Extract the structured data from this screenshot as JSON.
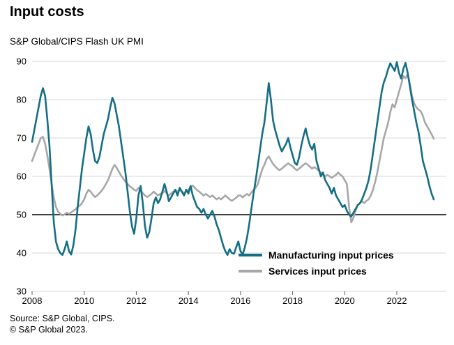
{
  "title": "Input costs",
  "subtitle": "S&P Global/CIPS Flash UK PMI",
  "source": {
    "line1": "Source: S&P Global, CIPS.",
    "line2": "© S&P Global 2023."
  },
  "colors": {
    "manufacturing": "#146e84",
    "services": "#a7a7a7",
    "gridline": "#d9d9d9",
    "baseline": "#000000",
    "tick": "#595959",
    "label": "#000000"
  },
  "chart_data": {
    "type": "line",
    "title": "Input costs",
    "subtitle": "S&P Global/CIPS Flash UK PMI",
    "xlabel": "",
    "ylabel": "",
    "x_start": 2008.0,
    "x_step_months": 1,
    "xlim": [
      2008,
      2023.9
    ],
    "ylim": [
      30,
      90
    ],
    "yticks": [
      30,
      40,
      50,
      60,
      70,
      80,
      90
    ],
    "xticks": [
      2008,
      2010,
      2012,
      2014,
      2016,
      2018,
      2020,
      2022
    ],
    "baseline": 50,
    "grid": "horizontal",
    "legend_position": "inside-bottom-right",
    "series": [
      {
        "name": "Manufacturing input prices",
        "color_key": "manufacturing",
        "values": [
          69,
          72,
          75,
          78,
          81,
          83,
          81,
          75,
          68,
          58,
          48,
          43,
          41,
          40,
          39.5,
          41,
          43,
          40.5,
          39.6,
          42,
          46,
          52,
          57,
          62,
          66,
          70,
          73,
          71,
          67,
          64,
          63.5,
          65,
          68,
          71,
          73,
          75,
          78,
          80.5,
          79,
          76,
          73,
          69,
          65,
          61,
          56,
          51,
          47,
          45,
          49,
          55,
          57.5,
          53,
          47,
          44,
          45.5,
          49,
          53,
          54.5,
          53,
          54,
          56,
          58,
          56,
          53.5,
          54.5,
          55.5,
          56.5,
          55,
          57,
          56,
          55,
          56.5,
          55.5,
          57.5,
          55,
          53.5,
          52,
          51.5,
          50.5,
          51.5,
          50,
          49,
          50,
          51,
          49.5,
          47.5,
          46,
          44,
          42,
          40.5,
          39.5,
          41,
          40,
          39.8,
          41.5,
          43,
          40.5,
          39.6,
          41.5,
          44,
          47.5,
          51.5,
          55.5,
          59,
          63,
          67,
          71,
          74,
          79,
          84.3,
          80,
          74.5,
          72,
          70,
          68,
          66.5,
          67.5,
          68.5,
          70,
          67.5,
          65.5,
          63.5,
          63,
          65,
          68,
          70.5,
          72.5,
          70,
          68,
          67,
          68.5,
          64,
          62,
          60,
          61,
          59,
          58,
          57,
          55.5,
          57,
          55,
          54,
          53,
          52,
          52.5,
          51,
          50,
          49.5,
          50.5,
          51.5,
          52.5,
          53,
          54,
          55.5,
          57,
          59,
          62,
          66,
          70,
          74,
          78,
          82,
          84.5,
          86,
          88,
          89.5,
          88.5,
          87.5,
          89.8,
          87,
          85.5,
          88,
          89.6,
          87,
          83.5,
          80,
          77,
          74,
          71.5,
          68,
          64,
          62,
          60,
          57.5,
          55.5,
          54
        ]
      },
      {
        "name": "Services input prices",
        "color_key": "services",
        "values": [
          64,
          65.5,
          67,
          68.5,
          70,
          70.3,
          68.5,
          65.5,
          62,
          58,
          54.5,
          52,
          50.8,
          50.2,
          49.8,
          50.1,
          50.5,
          50.2,
          50.6,
          51,
          51.4,
          52,
          52.4,
          53,
          54,
          55.5,
          56.5,
          56,
          55.2,
          54.6,
          55,
          55.6,
          56.2,
          57,
          58,
          59,
          60.5,
          62,
          63,
          62.2,
          61.2,
          60.2,
          59.4,
          58.6,
          58,
          57.4,
          57,
          56.5,
          56.2,
          57,
          56.4,
          55.6,
          55,
          54.6,
          55,
          55.4,
          56,
          55.5,
          55,
          55.4,
          55.6,
          56.2,
          55.6,
          55,
          55.5,
          56,
          56.4,
          56,
          56.5,
          56,
          55.6,
          56,
          56.5,
          57.2,
          57.6,
          57,
          56.4,
          56,
          55.5,
          55,
          55.4,
          55,
          54.6,
          55,
          54.5,
          54,
          54.4,
          54,
          54.5,
          55,
          54.5,
          54,
          53.6,
          54,
          54.4,
          55,
          55,
          54.5,
          55,
          55.4,
          55,
          55.8,
          56.4,
          57,
          58,
          60,
          61.8,
          63,
          64.5,
          65.2,
          64.2,
          63.2,
          62.6,
          62,
          61.6,
          62,
          62.5,
          63,
          63.4,
          63,
          62.6,
          62,
          61.6,
          62,
          62.5,
          63,
          63.4,
          63,
          62.5,
          62,
          62.4,
          62,
          61.5,
          61,
          60.5,
          60,
          60.4,
          60,
          59.6,
          60,
          60.4,
          61,
          60.4,
          60,
          59,
          58,
          52,
          48,
          49.2,
          51,
          52.6,
          53,
          53.5,
          53,
          53.6,
          54,
          55,
          56.5,
          58.5,
          61,
          64,
          67,
          70,
          72,
          74,
          76.8,
          78.8,
          78,
          80,
          82,
          84,
          86.2,
          85.6,
          86.6,
          84,
          81,
          79,
          78,
          77.4,
          77,
          75.8,
          74,
          73,
          72,
          71,
          69.8
        ]
      }
    ]
  }
}
